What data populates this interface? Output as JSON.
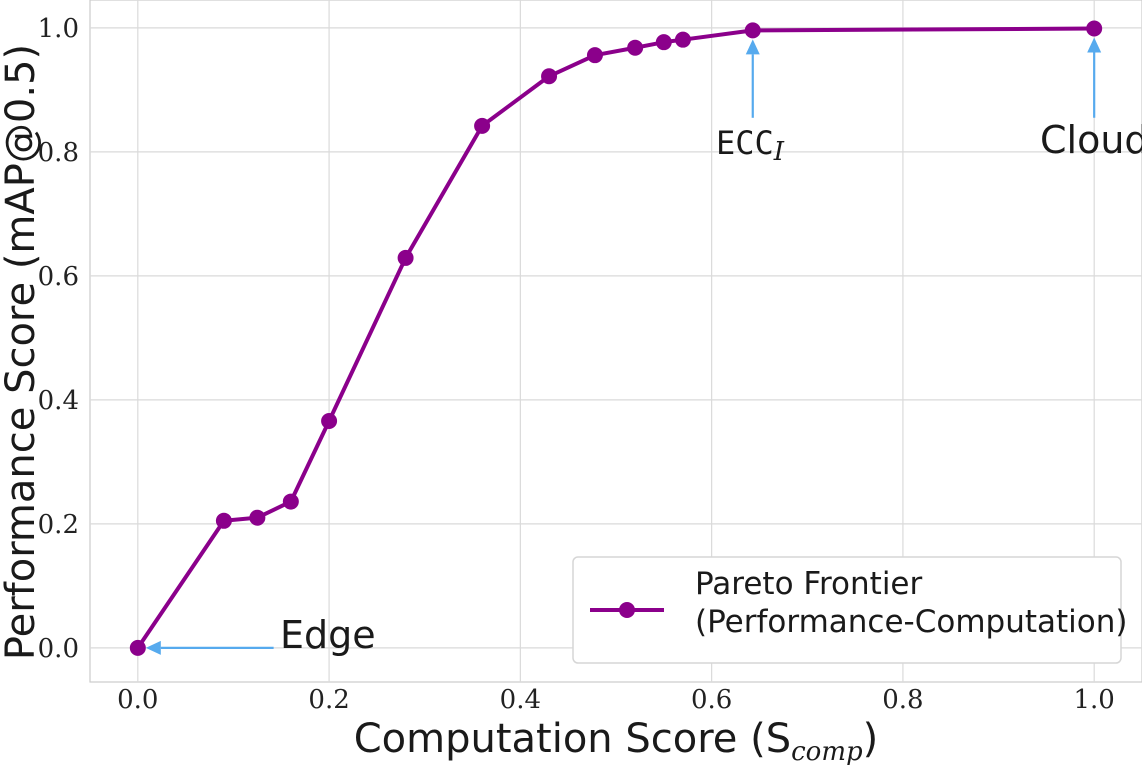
{
  "chart_data": {
    "type": "line",
    "xlabel": "Computation Score (S",
    "xlabel_sub": "comp",
    "xlabel_close": ")",
    "ylabel": "Performance Score (mAP@0.5)",
    "xlim": [
      -0.05,
      1.05
    ],
    "ylim": [
      -0.055,
      1.045
    ],
    "grid": true,
    "legend_position": "lower right",
    "x_ticks": [
      "0.0",
      "0.2",
      "0.4",
      "0.6",
      "0.8",
      "1.0"
    ],
    "y_ticks": [
      "0.0",
      "0.2",
      "0.4",
      "0.6",
      "0.8",
      "1.0"
    ],
    "series": [
      {
        "name": "Pareto Frontier\n(Performance-Computation)",
        "color": "#8b008b",
        "x": [
          0.0,
          0.09,
          0.125,
          0.16,
          0.2,
          0.28,
          0.36,
          0.43,
          0.478,
          0.52,
          0.55,
          0.57,
          0.643,
          1.0
        ],
        "y": [
          0.0,
          0.205,
          0.21,
          0.236,
          0.366,
          0.629,
          0.842,
          0.922,
          0.956,
          0.968,
          0.977,
          0.981,
          0.996,
          0.999
        ]
      }
    ],
    "annotations": [
      {
        "id": "edge",
        "text": "Edge",
        "point": [
          0.0,
          0.0
        ],
        "arrow_color": "#56aaee"
      },
      {
        "id": "ecc",
        "text": "ECC",
        "sub": "I",
        "point": [
          0.643,
          0.996
        ],
        "arrow_color": "#56aaee"
      },
      {
        "id": "cloud",
        "text": "Cloud",
        "point": [
          1.0,
          0.999
        ],
        "arrow_color": "#56aaee"
      }
    ]
  }
}
